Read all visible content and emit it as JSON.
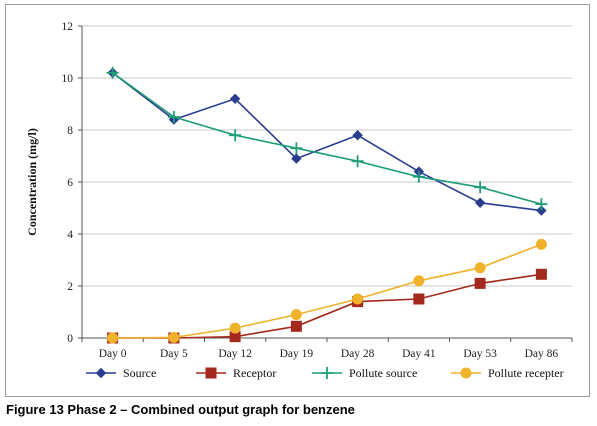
{
  "figure": {
    "caption_label": "Figure 13",
    "caption_title": "Phase 2 – Combined output graph for benzene"
  },
  "chart_data": {
    "type": "line",
    "title": "",
    "xlabel": "",
    "ylabel": "Concentration (mg/l)",
    "categories": [
      "Day 0",
      "Day 5",
      "Day 12",
      "Day 19",
      "Day 28",
      "Day 41",
      "Day 53",
      "Day 86"
    ],
    "ylim": [
      0,
      12
    ],
    "yticks": [
      0,
      2,
      4,
      6,
      8,
      10,
      12
    ],
    "grid": "horizontal",
    "legend_position": "bottom",
    "series": [
      {
        "name": "Source",
        "marker": "diamond",
        "color": "#2a3d8f",
        "values": [
          10.2,
          8.4,
          9.2,
          6.9,
          7.8,
          6.4,
          5.2,
          4.9
        ]
      },
      {
        "name": "Receptor",
        "marker": "square",
        "color": "#a3291e",
        "values": [
          0,
          0,
          0.05,
          0.45,
          1.4,
          1.5,
          2.1,
          2.45
        ]
      },
      {
        "name": "Pollute source",
        "marker": "plus",
        "color": "#1e9e78",
        "values": [
          10.2,
          8.5,
          7.8,
          7.3,
          6.8,
          6.2,
          5.8,
          5.15
        ]
      },
      {
        "name": "Pollute recepter",
        "marker": "circle",
        "color": "#f0b22a",
        "values": [
          0,
          0.02,
          0.38,
          0.9,
          1.5,
          2.2,
          2.7,
          3.6
        ]
      }
    ]
  }
}
